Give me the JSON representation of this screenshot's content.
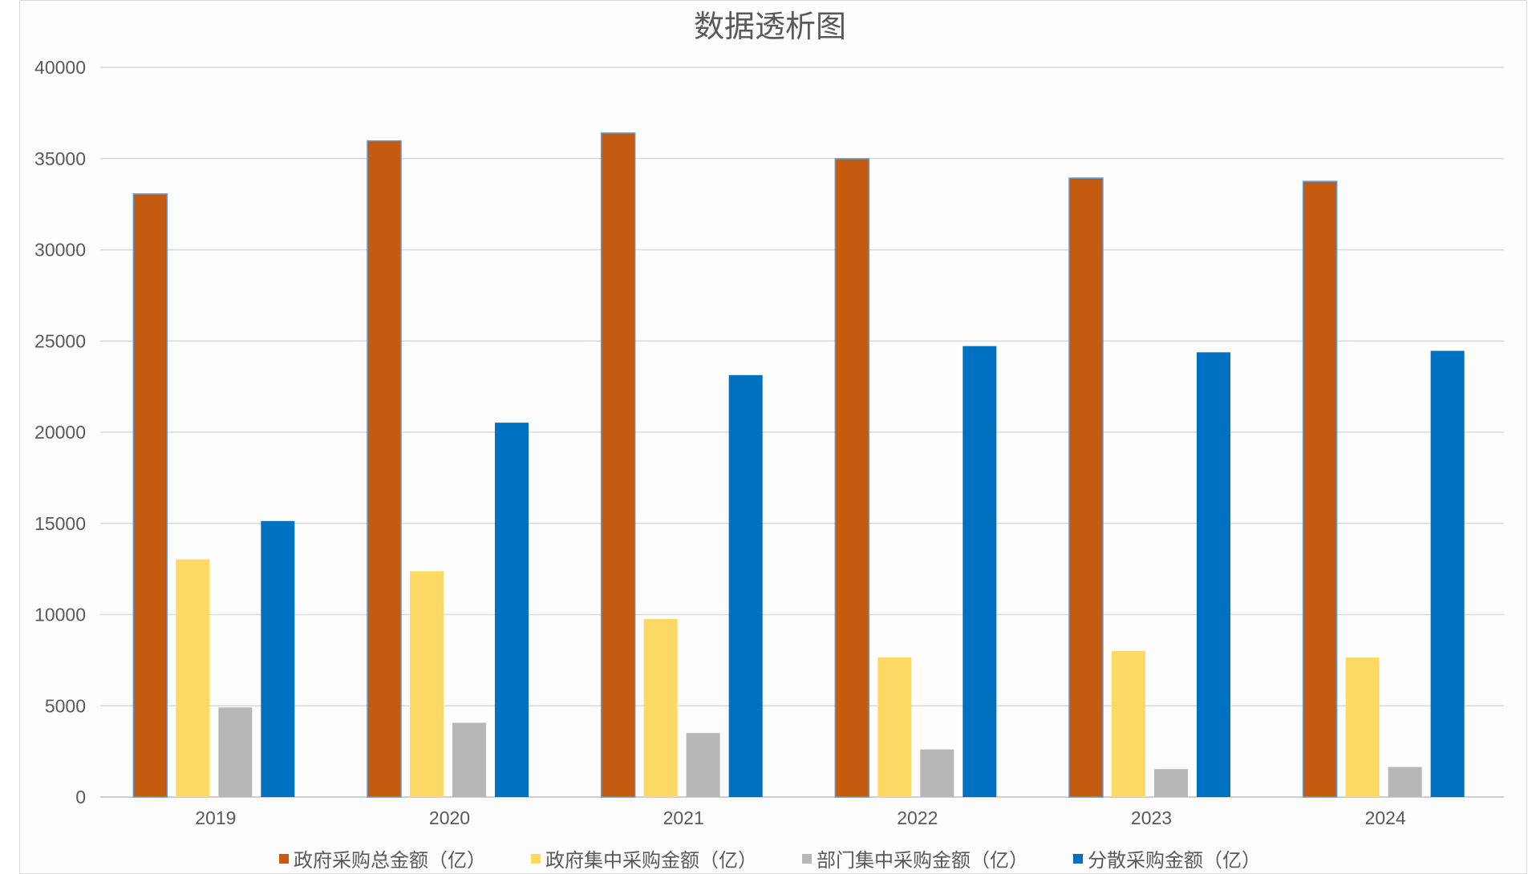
{
  "chart_data": {
    "type": "bar",
    "title": "数据透析图",
    "categories": [
      "2019",
      "2020",
      "2021",
      "2022",
      "2023",
      "2024"
    ],
    "series": [
      {
        "name": "政府采购总金额（亿）",
        "color": "#C55A11",
        "values": [
          33060,
          35970,
          36400,
          34990,
          33930,
          33750
        ]
      },
      {
        "name": "政府集中采购金额（亿）",
        "color": "#FFD966",
        "values": [
          13030,
          12380,
          9760,
          7660,
          8010,
          7650
        ]
      },
      {
        "name": "部门集中采购金额（亿）",
        "color": "#B7B7B7",
        "values": [
          4910,
          4070,
          3510,
          2610,
          1530,
          1650
        ]
      },
      {
        "name": "分散采购金额（亿）",
        "color": "#0070C0",
        "values": [
          15130,
          20520,
          23130,
          24720,
          24380,
          24460
        ]
      }
    ],
    "ylim": [
      0,
      40000
    ],
    "yticks": [
      "0",
      "5000",
      "10000",
      "15000",
      "20000",
      "25000",
      "30000",
      "35000",
      "40000"
    ],
    "grid": true,
    "legend_position": "bottom"
  }
}
